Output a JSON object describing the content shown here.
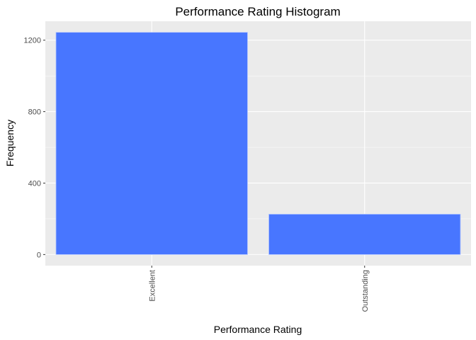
{
  "chart_data": {
    "type": "bar",
    "title": "Performance Rating Histogram",
    "xlabel": "Performance Rating",
    "ylabel": "Frequency",
    "categories": [
      "Excellent",
      "Outstanding"
    ],
    "values": [
      1244,
      226
    ],
    "ylim": [
      -62,
      1306
    ],
    "yticks": [
      0,
      400,
      800,
      1200
    ],
    "ytick_labels": [
      "0",
      "400",
      "800",
      "1200"
    ],
    "grid": true,
    "legend": "none",
    "colors": {
      "bar_fill": "#4876FF",
      "bar_outline": "#B0C4FF",
      "panel_bg": "#EBEBEB",
      "grid": "#FFFFFF",
      "tick_text": "#4D4D4D",
      "tick_mark": "#333333"
    }
  }
}
